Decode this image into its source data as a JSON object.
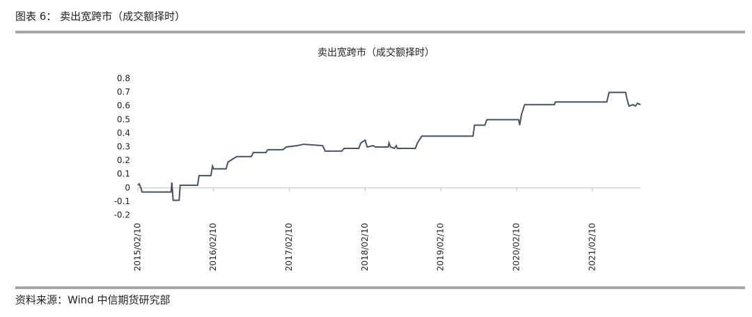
{
  "header": "图表 6：  卖出宽跨市（成交额择时）",
  "source": "资料来源：Wind  中信期货研究部",
  "chart_data": {
    "type": "line",
    "title": "卖出宽跨市（成交额择时）",
    "x": [
      "2015/02/10",
      "2015/02/16",
      "2015/02/25",
      "2015/03/02",
      "2015/07/20",
      "2015/07/24",
      "2015/07/30",
      "2015/08/28",
      "2015/09/02",
      "2015/11/25",
      "2015/12/02",
      "2016/01/28",
      "2016/02/05",
      "2016/02/10",
      "2016/04/10",
      "2016/04/20",
      "2016/05/10",
      "2016/06/01",
      "2016/08/10",
      "2016/08/20",
      "2016/10/20",
      "2016/10/28",
      "2017/01/10",
      "2017/01/25",
      "2017/03/20",
      "2017/04/20",
      "2017/07/20",
      "2017/08/01",
      "2017/10/20",
      "2017/11/01",
      "2018/01/10",
      "2018/01/20",
      "2018/02/10",
      "2018/02/20",
      "2018/03/20",
      "2018/04/01",
      "2018/06/01",
      "2018/06/05",
      "2018/06/12",
      "2018/07/01",
      "2018/07/10",
      "2018/07/15",
      "2018/10/10",
      "2018/10/20",
      "2018/11/10",
      "2019/07/15",
      "2019/07/22",
      "2019/09/10",
      "2019/09/20",
      "2020/02/20",
      "2020/02/25",
      "2020/03/05",
      "2020/03/20",
      "2020/08/10",
      "2020/08/15",
      "2021/04/20",
      "2021/05/01",
      "2021/07/20",
      "2021/07/25",
      "2021/08/05",
      "2021/08/25",
      "2021/09/05",
      "2021/09/15",
      "2021/09/30"
    ],
    "series": [
      {
        "name": "卖出宽跨市",
        "color": "#4a5160",
        "values": [
          0.02,
          0.03,
          0.0,
          -0.03,
          -0.03,
          0.04,
          -0.09,
          -0.09,
          0.02,
          0.02,
          0.09,
          0.09,
          0.16,
          0.14,
          0.14,
          0.19,
          0.21,
          0.23,
          0.23,
          0.26,
          0.26,
          0.28,
          0.28,
          0.3,
          0.31,
          0.32,
          0.31,
          0.27,
          0.27,
          0.29,
          0.29,
          0.33,
          0.35,
          0.3,
          0.31,
          0.3,
          0.3,
          0.33,
          0.3,
          0.29,
          0.31,
          0.29,
          0.29,
          0.33,
          0.38,
          0.38,
          0.46,
          0.46,
          0.5,
          0.5,
          0.46,
          0.54,
          0.61,
          0.61,
          0.63,
          0.63,
          0.7,
          0.7,
          0.66,
          0.6,
          0.61,
          0.6,
          0.62,
          0.61
        ]
      }
    ],
    "xlim": [
      "2015/02/10",
      "2021/09/30"
    ],
    "xticks": [
      "2015/02/10",
      "2016/02/10",
      "2017/02/10",
      "2018/02/10",
      "2019/02/10",
      "2020/02/10",
      "2021/02/10"
    ],
    "ylim": [
      -0.2,
      0.8
    ],
    "yticks": [
      -0.2,
      -0.1,
      0,
      0.1,
      0.2,
      0.3,
      0.4,
      0.5,
      0.6,
      0.7,
      0.8
    ],
    "grid": false
  }
}
